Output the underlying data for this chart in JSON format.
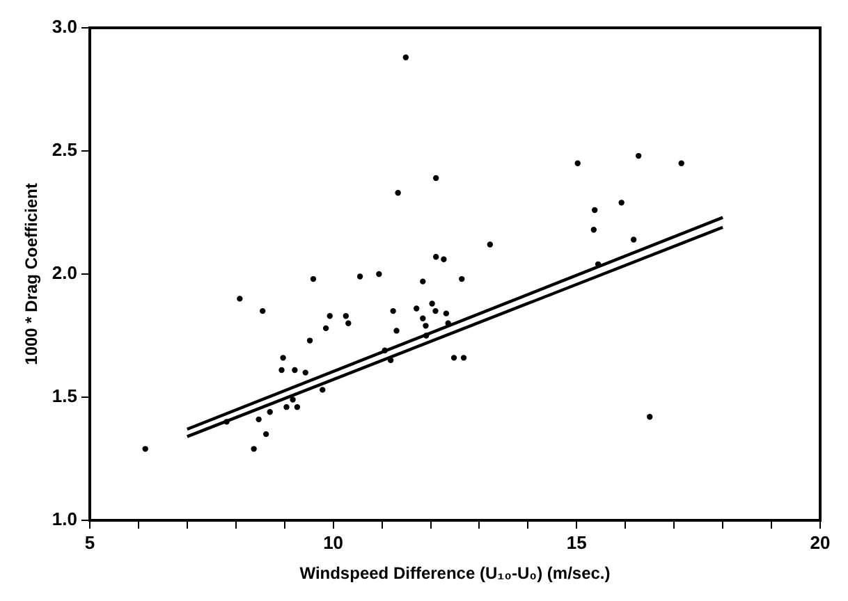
{
  "chart_data": {
    "type": "scatter",
    "xlabel": "Windspeed Difference (U₁₀-U₀) (m/sec.)",
    "ylabel": "1000 * Drag Coefficient",
    "xlim": [
      5,
      20
    ],
    "ylim": [
      1.0,
      3.0
    ],
    "xticks": [
      5,
      {
        "value": 6,
        "label": null
      },
      {
        "value": 7,
        "label": null
      },
      {
        "value": 8,
        "label": null
      },
      {
        "value": 9,
        "label": null
      },
      10,
      {
        "value": 11,
        "label": null
      },
      {
        "value": 12,
        "label": null
      },
      {
        "value": 13,
        "label": null
      },
      {
        "value": 14,
        "label": null
      },
      15,
      {
        "value": 16,
        "label": null
      },
      {
        "value": 17,
        "label": null
      },
      {
        "value": 18,
        "label": null
      },
      {
        "value": 19,
        "label": null
      },
      20
    ],
    "yticks": [
      {
        "value": 1.0,
        "label": "1.0"
      },
      1.5,
      {
        "value": 2.0,
        "label": "2.0"
      },
      2.5,
      {
        "value": 3.0,
        "label": "3.0"
      }
    ],
    "grid": false,
    "legend": false,
    "marker": "circle",
    "series": [
      {
        "type": "scatter",
        "color": "#000000",
        "x": [
          6.14,
          8.08,
          8.55,
          8.37,
          8.62,
          8.47,
          8.7,
          7.81,
          9.04,
          9.17,
          9.26,
          8.94,
          8.97,
          9.21,
          9.43,
          9.78,
          9.52,
          9.59,
          9.85,
          9.93,
          10.26,
          10.31,
          10.55,
          10.94,
          11.49,
          15.02,
          12.11,
          11.33,
          15.37,
          15.92,
          15.35,
          16.17,
          13.22,
          12.11,
          12.27,
          11.84,
          12.64,
          11.23,
          11.71,
          12.03,
          12.1,
          12.32,
          11.84,
          11.9,
          11.3,
          12.36,
          11.91,
          11.06,
          11.18,
          12.48,
          12.68,
          15.44,
          16.27,
          17.15,
          16.5
        ],
        "values": [
          1.29,
          1.9,
          1.85,
          1.29,
          1.35,
          1.41,
          1.44,
          1.4,
          1.46,
          1.49,
          1.46,
          1.61,
          1.66,
          1.61,
          1.6,
          1.53,
          1.73,
          1.98,
          1.78,
          1.83,
          1.83,
          1.8,
          1.99,
          2.0,
          2.88,
          2.45,
          2.39,
          2.33,
          2.26,
          2.29,
          2.18,
          2.14,
          2.12,
          2.07,
          2.06,
          1.97,
          1.98,
          1.85,
          1.86,
          1.88,
          1.85,
          1.84,
          1.82,
          1.79,
          1.77,
          1.8,
          1.75,
          1.69,
          1.65,
          1.66,
          1.66,
          2.04,
          2.48,
          2.45,
          1.42
        ]
      },
      {
        "type": "line",
        "color": "#000000",
        "marker": "none",
        "x": [
          7,
          18
        ],
        "values": [
          1.37,
          2.23
        ]
      },
      {
        "type": "line",
        "color": "#000000",
        "marker": "none",
        "x": [
          7,
          18
        ],
        "values": [
          1.34,
          2.19
        ]
      }
    ]
  }
}
